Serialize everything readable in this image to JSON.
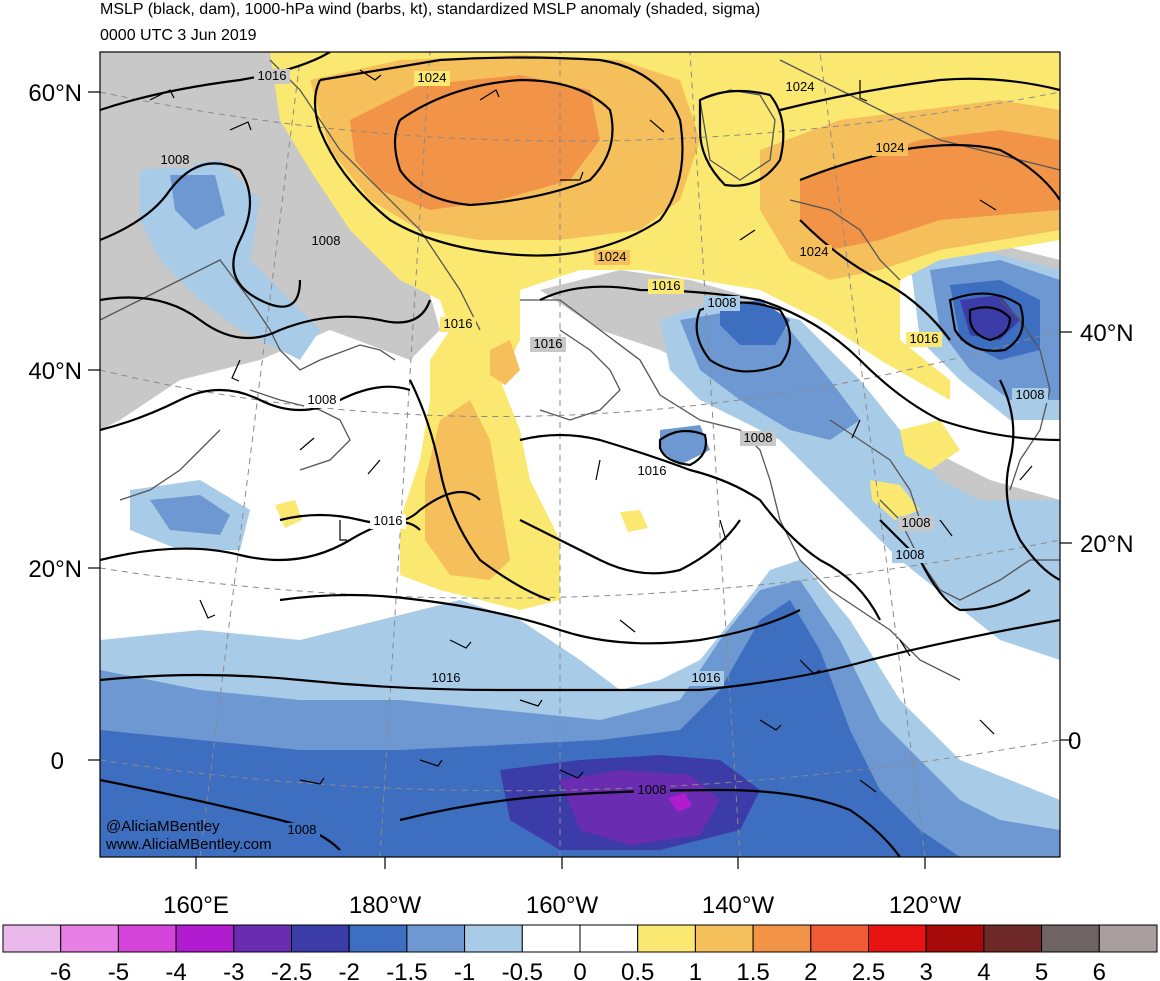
{
  "title_line1": "MSLP (black, dam), 1000-hPa wind (barbs, kt), standardized MSLP anomaly (shaded, sigma)",
  "title_line2": "0000 UTC 3 Jun 2019",
  "credit_line1": "@AliciaMBentley",
  "credit_line2": "www.AliciaMBentley.com",
  "lat_labels_left": [
    "60°N",
    "40°N",
    "20°N",
    "0"
  ],
  "lat_labels_right": [
    "40°N",
    "20°N",
    "0"
  ],
  "lon_labels": [
    "160°E",
    "180°W",
    "160°W",
    "140°W",
    "120°W"
  ],
  "colorbar": {
    "labels": [
      "-6",
      "-5",
      "-4",
      "-3",
      "-2.5",
      "-2",
      "-1.5",
      "-1",
      "-0.5",
      "0",
      "0.5",
      "1",
      "1.5",
      "2",
      "2.5",
      "3",
      "4",
      "5",
      "6"
    ],
    "colors": [
      "#eab8ea",
      "#e680e6",
      "#d444d8",
      "#b21cd0",
      "#6a2cb0",
      "#3c3ca8",
      "#3d6ec0",
      "#6e98d2",
      "#a8cbe8",
      "#ffffff",
      "#ffffff",
      "#fbe870",
      "#f5c05c",
      "#f29448",
      "#f05a34",
      "#e81414",
      "#a80a0a",
      "#6e2828",
      "#6e6464",
      "#a89e9e"
    ]
  },
  "contour_labels": [
    {
      "text": "1016",
      "id": "c1"
    },
    {
      "text": "1024",
      "id": "c2"
    },
    {
      "text": "1024",
      "id": "c3"
    },
    {
      "text": "1024",
      "id": "c4"
    },
    {
      "text": "1008",
      "id": "c5"
    },
    {
      "text": "1008",
      "id": "c6"
    },
    {
      "text": "1024",
      "id": "c7"
    },
    {
      "text": "1024",
      "id": "c8"
    },
    {
      "text": "1016",
      "id": "c9"
    },
    {
      "text": "1016",
      "id": "c10"
    },
    {
      "text": "1016",
      "id": "c11"
    },
    {
      "text": "1008",
      "id": "c12"
    },
    {
      "text": "1016",
      "id": "c13"
    },
    {
      "text": "1008",
      "id": "c14"
    },
    {
      "text": "1008",
      "id": "c15"
    },
    {
      "text": "1008",
      "id": "c16"
    },
    {
      "text": "1016",
      "id": "c17"
    },
    {
      "text": "1016",
      "id": "c18"
    },
    {
      "text": "1008",
      "id": "c19"
    },
    {
      "text": "1008",
      "id": "c20"
    },
    {
      "text": "1016",
      "id": "c21"
    },
    {
      "text": "1016",
      "id": "c22"
    },
    {
      "text": "1008",
      "id": "c23"
    },
    {
      "text": "1008",
      "id": "c24"
    }
  ]
}
